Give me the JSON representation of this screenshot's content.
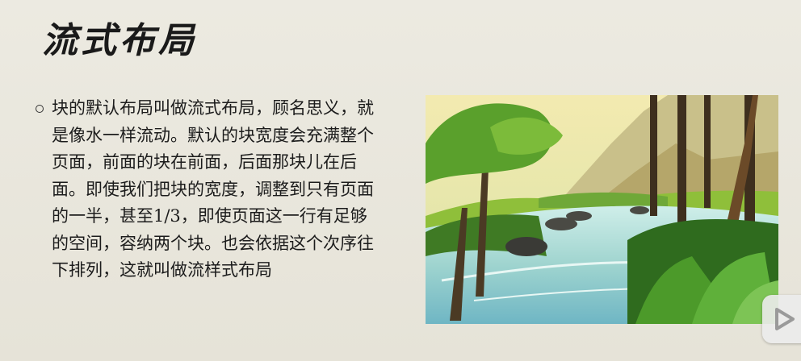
{
  "slide": {
    "title": "流式布局",
    "bullet_text": "块的默认布局叫做流式布局，顾名思义，就是像水一样流动。默认的块宽度会充满整个页面，前面的块在前面，后面那块儿在后面。即使我们把块的宽度，调整到只有页面的一半，甚至1/3，即使页面这一行有足够的空间，容纳两个块。也会依据这个次序往下排列，这就叫做流样式布局"
  },
  "icons": {
    "bullet": "hollow-circle-bullet-icon",
    "play": "play-icon"
  },
  "colors": {
    "background": "#e9e6dc",
    "text": "#1c1c1c",
    "river": "#9fd4cf",
    "foliage": "#4f8f2a"
  }
}
